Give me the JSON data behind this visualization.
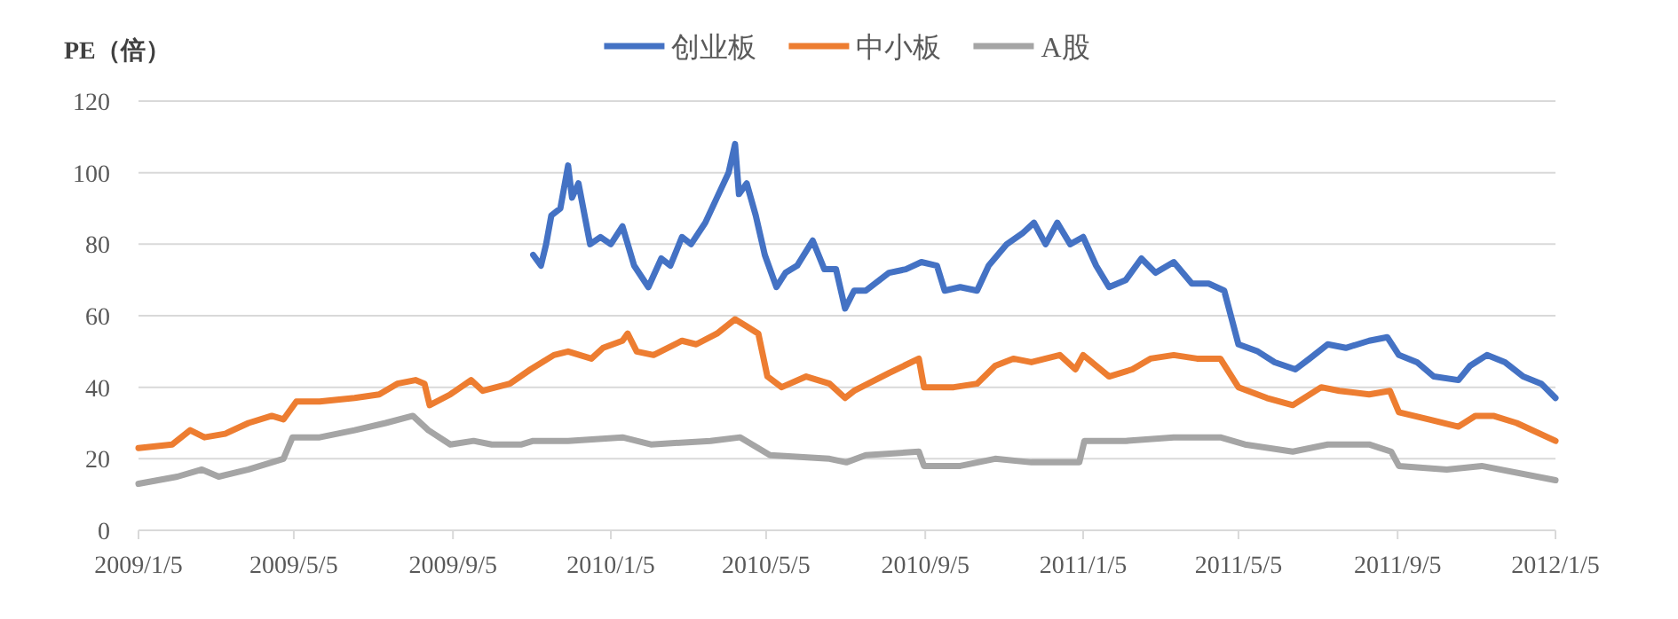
{
  "chart_data": {
    "type": "line",
    "ylabel": "PE（倍）",
    "ylim": [
      0,
      120
    ],
    "yticks": [
      0,
      20,
      40,
      60,
      80,
      100,
      120
    ],
    "xlim": [
      "2009-01-05",
      "2012-01-05"
    ],
    "xticks": [
      {
        "value": "2009-01-05",
        "label": "2009/1/5"
      },
      {
        "value": "2009-05-05",
        "label": "2009/5/5"
      },
      {
        "value": "2009-09-05",
        "label": "2009/9/5"
      },
      {
        "value": "2010-01-05",
        "label": "2010/1/5"
      },
      {
        "value": "2010-05-05",
        "label": "2010/5/5"
      },
      {
        "value": "2010-09-05",
        "label": "2010/9/5"
      },
      {
        "value": "2011-01-05",
        "label": "2011/1/5"
      },
      {
        "value": "2011-05-05",
        "label": "2011/5/5"
      },
      {
        "value": "2011-09-05",
        "label": "2011/9/5"
      },
      {
        "value": "2012-01-05",
        "label": "2012/1/5"
      }
    ],
    "grid": "y",
    "legend": "top",
    "marker": "none",
    "line_style": "solid",
    "series": [
      {
        "name": "创业板",
        "color": "#4472c4",
        "x": [
          "2009-11-06",
          "2009-11-12",
          "2009-11-16",
          "2009-11-20",
          "2009-11-27",
          "2009-12-03",
          "2009-12-06",
          "2009-12-11",
          "2009-12-20",
          "2009-12-28",
          "2010-01-05",
          "2010-01-14",
          "2010-01-23",
          "2010-02-03",
          "2010-02-13",
          "2010-02-20",
          "2010-03-01",
          "2010-03-08",
          "2010-03-19",
          "2010-03-28",
          "2010-04-06",
          "2010-04-11",
          "2010-04-14",
          "2010-04-20",
          "2010-04-27",
          "2010-05-04",
          "2010-05-13",
          "2010-05-20",
          "2010-05-29",
          "2010-06-10",
          "2010-06-19",
          "2010-06-28",
          "2010-07-05",
          "2010-07-12",
          "2010-07-21",
          "2010-08-08",
          "2010-08-21",
          "2010-09-02",
          "2010-09-14",
          "2010-09-20",
          "2010-10-02",
          "2010-10-15",
          "2010-10-24",
          "2010-11-07",
          "2010-11-19",
          "2010-11-28",
          "2010-12-07",
          "2010-12-16",
          "2010-12-26",
          "2011-01-05",
          "2011-01-15",
          "2011-01-25",
          "2011-02-07",
          "2011-02-19",
          "2011-03-02",
          "2011-03-16",
          "2011-03-30",
          "2011-04-12",
          "2011-04-24",
          "2011-05-05",
          "2011-05-20",
          "2011-06-02",
          "2011-06-18",
          "2011-06-29",
          "2011-07-13",
          "2011-07-27",
          "2011-08-14",
          "2011-08-28",
          "2011-09-06",
          "2011-09-20",
          "2011-10-03",
          "2011-10-22",
          "2011-10-31",
          "2011-11-13",
          "2011-11-27",
          "2011-12-11",
          "2011-12-25",
          "2012-01-05"
        ],
        "values": [
          77,
          74,
          80,
          88,
          90,
          102,
          93,
          97,
          80,
          82,
          80,
          85,
          74,
          68,
          76,
          74,
          82,
          80,
          86,
          93,
          100,
          108,
          94,
          97,
          88,
          77,
          68,
          72,
          74,
          81,
          73,
          73,
          62,
          67,
          67,
          72,
          73,
          75,
          74,
          67,
          68,
          67,
          74,
          80,
          83,
          86,
          80,
          86,
          80,
          82,
          74,
          68,
          70,
          76,
          72,
          75,
          69,
          69,
          67,
          52,
          50,
          47,
          45,
          48,
          52,
          51,
          53,
          54,
          49,
          47,
          43,
          42,
          46,
          49,
          47,
          43,
          41,
          37
        ]
      },
      {
        "name": "中小板",
        "color": "#ed7d31",
        "x": [
          "2009-01-05",
          "2009-01-31",
          "2009-02-14",
          "2009-02-25",
          "2009-03-13",
          "2009-03-31",
          "2009-04-18",
          "2009-04-27",
          "2009-05-07",
          "2009-05-25",
          "2009-06-21",
          "2009-07-10",
          "2009-07-24",
          "2009-08-07",
          "2009-08-14",
          "2009-08-18",
          "2009-09-03",
          "2009-09-19",
          "2009-09-28",
          "2009-10-19",
          "2009-11-04",
          "2009-11-22",
          "2009-12-03",
          "2009-12-21",
          "2009-12-30",
          "2010-01-14",
          "2010-01-18",
          "2010-01-25",
          "2010-02-07",
          "2010-03-01",
          "2010-03-12",
          "2010-03-28",
          "2010-04-11",
          "2010-04-20",
          "2010-04-29",
          "2010-05-06",
          "2010-05-17",
          "2010-06-05",
          "2010-06-23",
          "2010-07-05",
          "2010-07-12",
          "2010-08-08",
          "2010-08-31",
          "2010-09-04",
          "2010-09-27",
          "2010-10-15",
          "2010-10-29",
          "2010-11-12",
          "2010-11-26",
          "2010-12-18",
          "2010-12-30",
          "2011-01-05",
          "2011-01-25",
          "2011-02-12",
          "2011-02-26",
          "2011-03-16",
          "2011-04-03",
          "2011-04-21",
          "2011-05-05",
          "2011-05-27",
          "2011-06-16",
          "2011-07-08",
          "2011-07-22",
          "2011-08-14",
          "2011-08-30",
          "2011-09-06",
          "2011-09-29",
          "2011-10-22",
          "2011-11-04",
          "2011-11-18",
          "2011-12-06",
          "2012-01-05"
        ],
        "values": [
          23,
          24,
          28,
          26,
          27,
          30,
          32,
          31,
          36,
          36,
          37,
          38,
          41,
          42,
          41,
          35,
          38,
          42,
          39,
          41,
          45,
          49,
          50,
          48,
          51,
          53,
          55,
          50,
          49,
          53,
          52,
          55,
          59,
          57,
          55,
          43,
          40,
          43,
          41,
          37,
          39,
          44,
          48,
          40,
          40,
          41,
          46,
          48,
          47,
          49,
          45,
          49,
          43,
          45,
          48,
          49,
          48,
          48,
          40,
          37,
          35,
          40,
          39,
          38,
          39,
          33,
          31,
          29,
          32,
          32,
          30,
          25
        ]
      },
      {
        "name": "A股",
        "color": "#a5a5a5",
        "x": [
          "2009-01-05",
          "2009-02-04",
          "2009-02-23",
          "2009-03-08",
          "2009-03-31",
          "2009-04-27",
          "2009-05-04",
          "2009-05-25",
          "2009-06-21",
          "2009-07-15",
          "2009-08-05",
          "2009-08-17",
          "2009-09-03",
          "2009-09-21",
          "2009-10-05",
          "2009-10-28",
          "2009-11-06",
          "2009-12-03",
          "2010-01-14",
          "2010-02-05",
          "2010-03-23",
          "2010-04-15",
          "2010-05-08",
          "2010-06-23",
          "2010-07-06",
          "2010-07-21",
          "2010-08-31",
          "2010-09-04",
          "2010-10-02",
          "2010-10-29",
          "2010-11-26",
          "2011-01-02",
          "2011-01-06",
          "2011-02-07",
          "2011-03-16",
          "2011-04-21",
          "2011-05-10",
          "2011-06-16",
          "2011-07-13",
          "2011-08-14",
          "2011-08-31",
          "2011-09-06",
          "2011-10-13",
          "2011-11-09",
          "2012-01-05"
        ],
        "values": [
          13,
          15,
          17,
          15,
          17,
          20,
          26,
          26,
          28,
          30,
          32,
          28,
          24,
          25,
          24,
          24,
          25,
          25,
          26,
          24,
          25,
          26,
          21,
          20,
          19,
          21,
          22,
          18,
          18,
          20,
          19,
          19,
          25,
          25,
          26,
          26,
          24,
          22,
          24,
          24,
          22,
          18,
          17,
          18,
          14
        ]
      }
    ]
  }
}
